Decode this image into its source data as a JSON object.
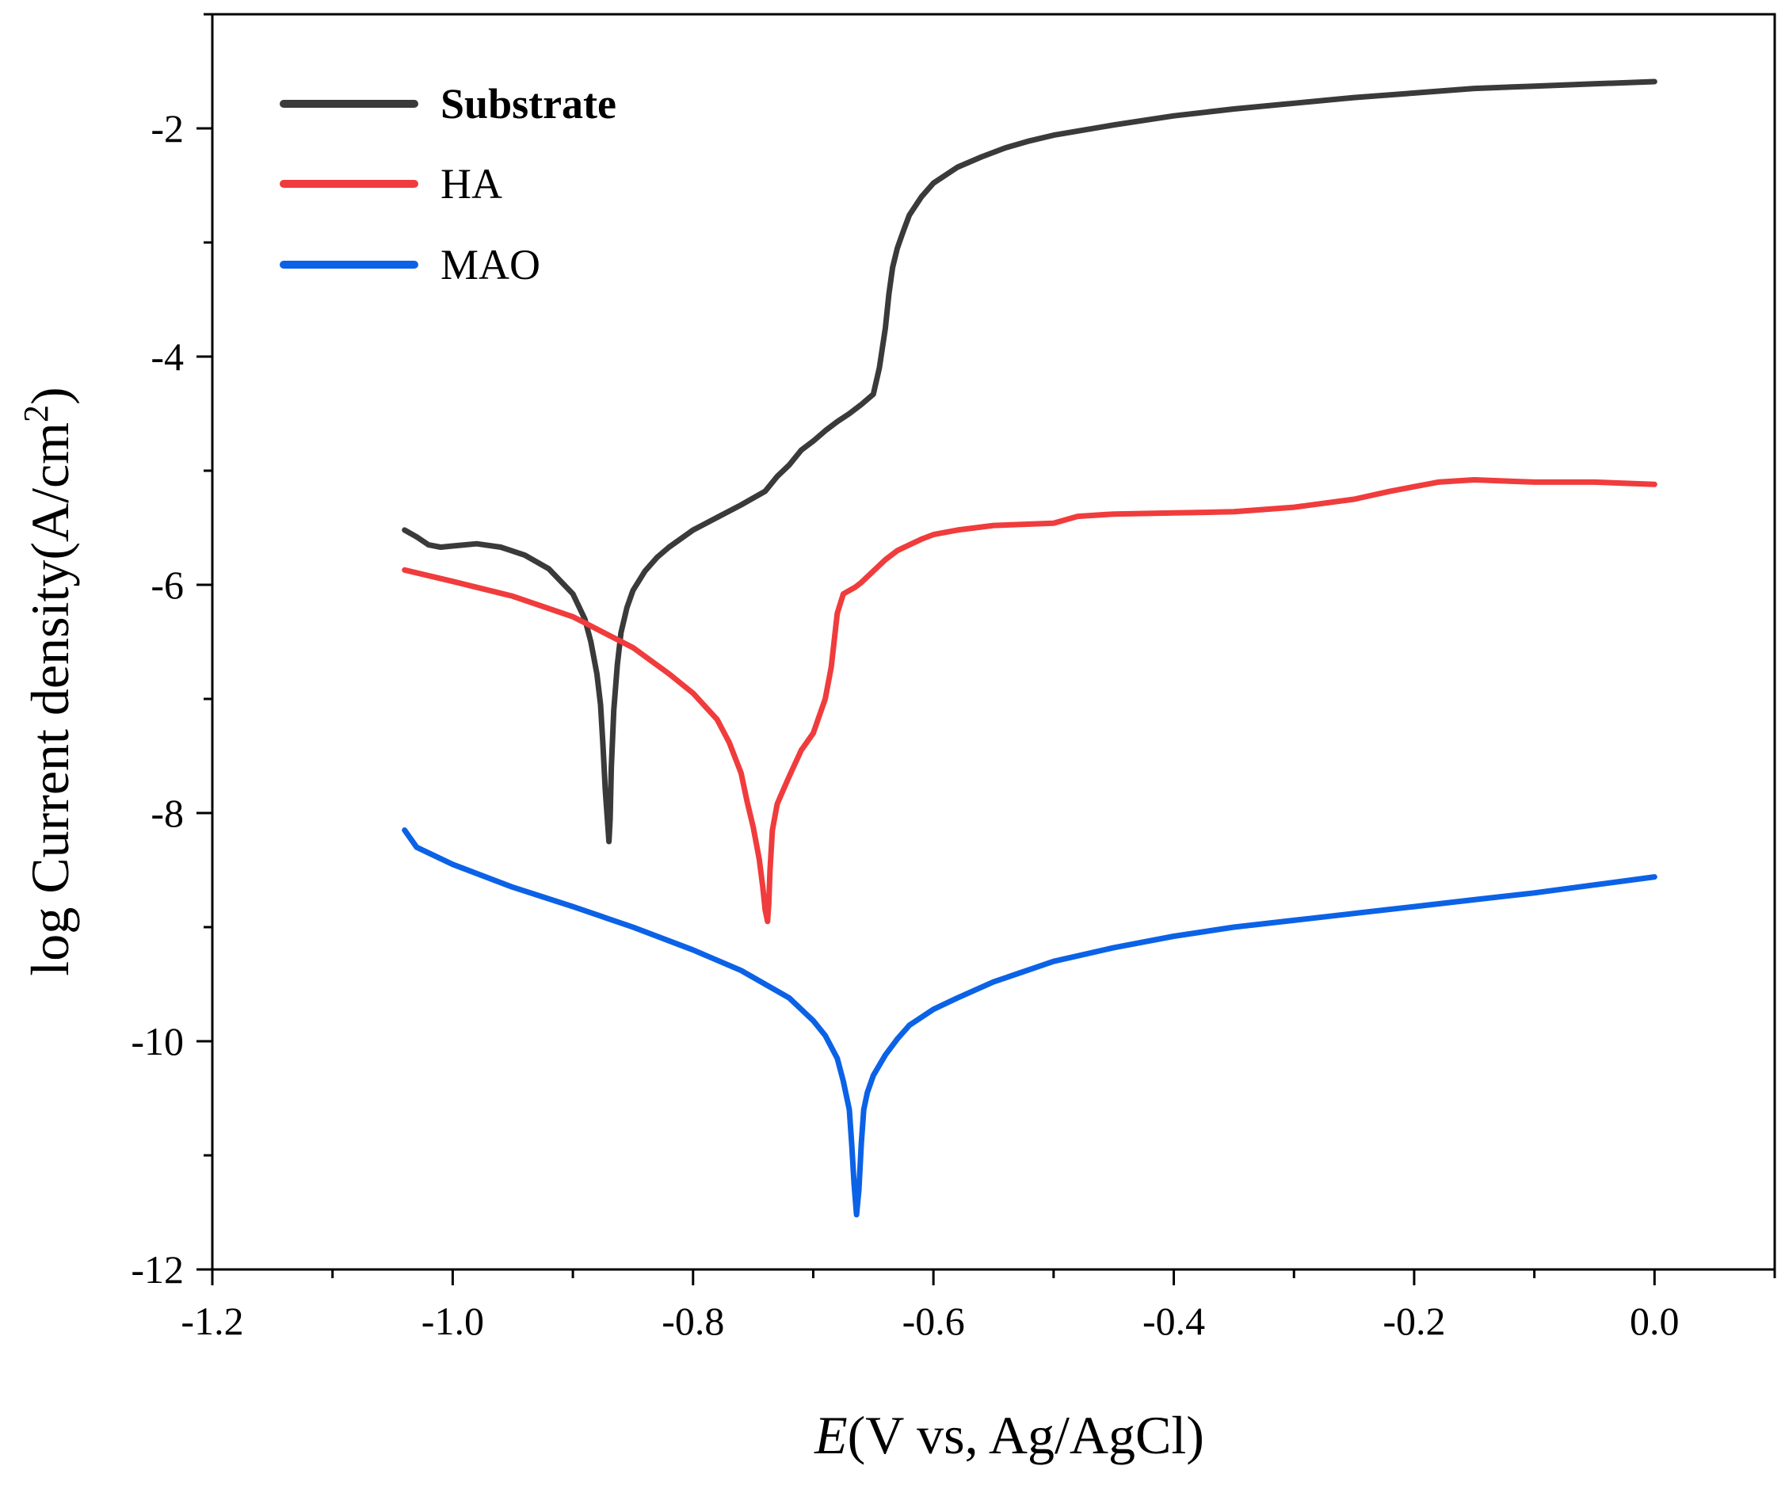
{
  "chart_data": {
    "type": "line",
    "title": "",
    "xlabel_var": "E",
    "xlabel_rest": "(V vs, Ag/AgCl)",
    "ylabel_text": "log Current density(A/cm",
    "ylabel_sup": "2",
    "ylabel_close": ")",
    "xlim": [
      -1.2,
      0.1
    ],
    "ylim": [
      -12,
      -1
    ],
    "x_ticks": [
      -1.2,
      -1.0,
      -0.8,
      -0.6,
      -0.4,
      -0.2,
      0.0
    ],
    "x_tick_labels": [
      "-1.2",
      "-1.0",
      "-0.8",
      "-0.6",
      "-0.4",
      "-0.2",
      "0.0"
    ],
    "x_minor_ticks": [
      -1.1,
      -0.9,
      -0.7,
      -0.5,
      -0.3,
      -0.1,
      0.1
    ],
    "y_ticks": [
      -12,
      -10,
      -8,
      -6,
      -4,
      -2
    ],
    "y_tick_labels": [
      "-12",
      "-10",
      "-8",
      "-6",
      "-4",
      "-2"
    ],
    "y_minor_ticks": [
      -11,
      -9,
      -7,
      -5,
      -3,
      -1
    ],
    "grid": false,
    "legend_position": "top-left",
    "series": [
      {
        "name": "Substrate",
        "color": "#3a3a3a",
        "bold": true,
        "x": [
          -1.04,
          -1.03,
          -1.02,
          -1.01,
          -1.0,
          -0.98,
          -0.96,
          -0.94,
          -0.92,
          -0.9,
          -0.89,
          -0.885,
          -0.88,
          -0.877,
          -0.875,
          -0.873,
          -0.871,
          -0.87,
          -0.869,
          -0.868,
          -0.866,
          -0.863,
          -0.86,
          -0.855,
          -0.85,
          -0.84,
          -0.83,
          -0.82,
          -0.8,
          -0.78,
          -0.76,
          -0.74,
          -0.73,
          -0.72,
          -0.71,
          -0.7,
          -0.69,
          -0.68,
          -0.67,
          -0.66,
          -0.65,
          -0.645,
          -0.64,
          -0.637,
          -0.634,
          -0.63,
          -0.625,
          -0.62,
          -0.61,
          -0.6,
          -0.58,
          -0.56,
          -0.54,
          -0.52,
          -0.5,
          -0.45,
          -0.4,
          -0.35,
          -0.3,
          -0.25,
          -0.2,
          -0.15,
          -0.1,
          -0.05,
          0.0
        ],
        "y": [
          -5.52,
          -5.58,
          -5.65,
          -5.67,
          -5.66,
          -5.64,
          -5.67,
          -5.74,
          -5.86,
          -6.08,
          -6.3,
          -6.5,
          -6.78,
          -7.05,
          -7.4,
          -7.8,
          -8.1,
          -8.25,
          -8.05,
          -7.6,
          -7.1,
          -6.7,
          -6.42,
          -6.2,
          -6.05,
          -5.88,
          -5.76,
          -5.67,
          -5.52,
          -5.41,
          -5.3,
          -5.18,
          -5.05,
          -4.95,
          -4.82,
          -4.74,
          -4.65,
          -4.57,
          -4.5,
          -4.42,
          -4.33,
          -4.1,
          -3.75,
          -3.45,
          -3.22,
          -3.05,
          -2.9,
          -2.76,
          -2.6,
          -2.48,
          -2.34,
          -2.25,
          -2.17,
          -2.11,
          -2.06,
          -1.97,
          -1.89,
          -1.83,
          -1.78,
          -1.73,
          -1.69,
          -1.65,
          -1.63,
          -1.61,
          -1.59
        ]
      },
      {
        "name": "HA",
        "color": "#f03c3c",
        "bold": false,
        "x": [
          -1.04,
          -1.0,
          -0.95,
          -0.9,
          -0.85,
          -0.82,
          -0.8,
          -0.78,
          -0.77,
          -0.76,
          -0.755,
          -0.75,
          -0.745,
          -0.742,
          -0.74,
          -0.738,
          -0.737,
          -0.736,
          -0.734,
          -0.73,
          -0.725,
          -0.72,
          -0.71,
          -0.7,
          -0.695,
          -0.69,
          -0.685,
          -0.68,
          -0.675,
          -0.67,
          -0.665,
          -0.66,
          -0.65,
          -0.64,
          -0.63,
          -0.62,
          -0.61,
          -0.6,
          -0.58,
          -0.55,
          -0.5,
          -0.48,
          -0.45,
          -0.4,
          -0.35,
          -0.3,
          -0.25,
          -0.22,
          -0.18,
          -0.15,
          -0.1,
          -0.05,
          0.0
        ],
        "y": [
          -5.87,
          -5.97,
          -6.1,
          -6.28,
          -6.55,
          -6.78,
          -6.95,
          -7.18,
          -7.38,
          -7.65,
          -7.9,
          -8.12,
          -8.4,
          -8.65,
          -8.85,
          -8.95,
          -8.8,
          -8.5,
          -8.15,
          -7.92,
          -7.8,
          -7.68,
          -7.45,
          -7.3,
          -7.15,
          -7.0,
          -6.72,
          -6.25,
          -6.08,
          -6.05,
          -6.02,
          -5.98,
          -5.88,
          -5.78,
          -5.7,
          -5.65,
          -5.6,
          -5.56,
          -5.52,
          -5.48,
          -5.46,
          -5.4,
          -5.38,
          -5.37,
          -5.36,
          -5.32,
          -5.25,
          -5.18,
          -5.1,
          -5.08,
          -5.1,
          -5.1,
          -5.12
        ]
      },
      {
        "name": "MAO",
        "color": "#0c62e6",
        "bold": false,
        "x": [
          -1.04,
          -1.03,
          -1.0,
          -0.95,
          -0.9,
          -0.85,
          -0.8,
          -0.76,
          -0.72,
          -0.7,
          -0.69,
          -0.68,
          -0.675,
          -0.67,
          -0.668,
          -0.666,
          -0.664,
          -0.662,
          -0.66,
          -0.658,
          -0.655,
          -0.65,
          -0.64,
          -0.63,
          -0.62,
          -0.6,
          -0.58,
          -0.55,
          -0.5,
          -0.45,
          -0.4,
          -0.35,
          -0.3,
          -0.25,
          -0.2,
          -0.15,
          -0.1,
          -0.05,
          0.0
        ],
        "y": [
          -8.15,
          -8.3,
          -8.45,
          -8.65,
          -8.82,
          -9.0,
          -9.2,
          -9.38,
          -9.62,
          -9.82,
          -9.95,
          -10.15,
          -10.35,
          -10.6,
          -10.9,
          -11.25,
          -11.52,
          -11.3,
          -10.9,
          -10.6,
          -10.45,
          -10.3,
          -10.12,
          -9.98,
          -9.86,
          -9.72,
          -9.62,
          -9.48,
          -9.3,
          -9.18,
          -9.08,
          -9.0,
          -8.94,
          -8.88,
          -8.82,
          -8.76,
          -8.7,
          -8.63,
          -8.56
        ]
      }
    ]
  }
}
